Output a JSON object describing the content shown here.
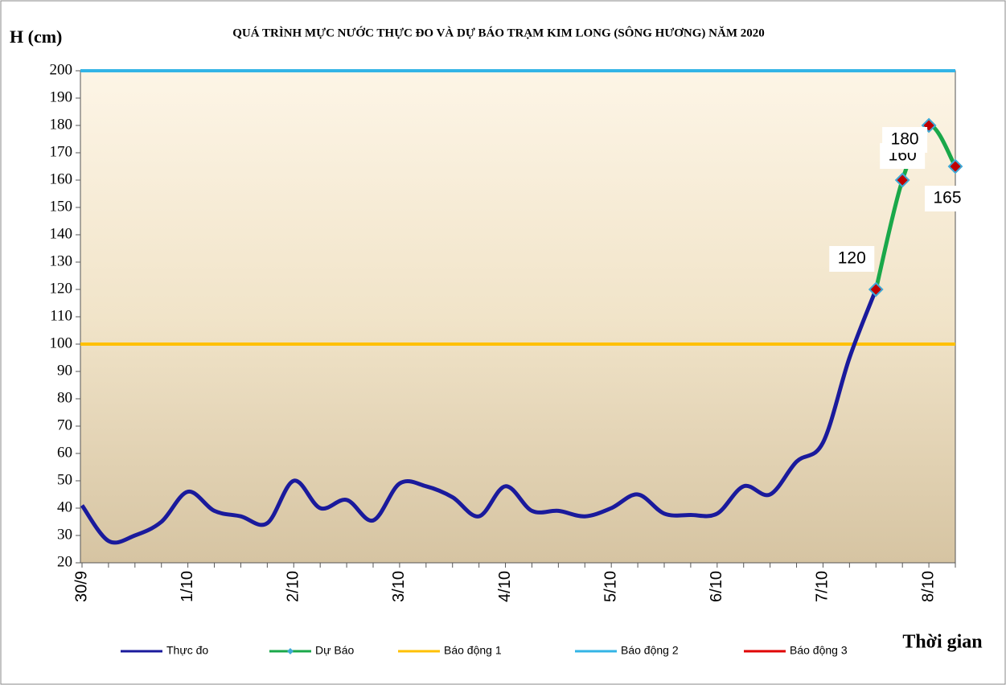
{
  "chart_data": {
    "type": "line",
    "title": "QUÁ TRÌNH MỰC NƯỚC THỰC ĐO VÀ DỰ BÁO TRẠM KIM LONG (SÔNG HƯƠNG) NĂM 2020",
    "y_label": "H (cm)",
    "x_label": "Thời gian",
    "categories": [
      "30/9",
      null,
      null,
      null,
      "1/10",
      null,
      null,
      null,
      "2/10",
      null,
      null,
      null,
      "3/10",
      null,
      null,
      null,
      "4/10",
      null,
      null,
      null,
      "5/10",
      null,
      null,
      null,
      "6/10",
      null,
      null,
      null,
      "7/10",
      null,
      null,
      null,
      "8/10",
      null
    ],
    "series": [
      {
        "name": "Thực đo",
        "color": "#1a1a9c",
        "values": [
          41,
          28,
          30,
          35,
          46,
          39,
          37,
          34.5,
          50,
          40,
          43,
          35.5,
          49,
          48,
          44,
          37,
          48,
          39,
          39,
          37,
          40,
          45,
          38,
          37.5,
          38,
          48,
          45,
          57,
          64,
          95,
          120,
          null,
          null,
          null
        ]
      },
      {
        "name": "Dự Báo",
        "color": "#1aa84a",
        "marker_color": "#c00000",
        "marker_edge": "#3fa9d6",
        "show_labels": true,
        "values": [
          null,
          null,
          null,
          null,
          null,
          null,
          null,
          null,
          null,
          null,
          null,
          null,
          null,
          null,
          null,
          null,
          null,
          null,
          null,
          null,
          null,
          null,
          null,
          null,
          null,
          null,
          null,
          null,
          null,
          null,
          120,
          160,
          180,
          165
        ]
      }
    ],
    "reference_lines": [
      {
        "name": "Báo động 1",
        "color": "#ffc000",
        "value": 100
      },
      {
        "name": "Báo động 2",
        "color": "#33b4e6",
        "value": 200
      },
      {
        "name": "Báo động 3",
        "color": "#e00000"
      }
    ],
    "ylim": [
      20,
      200
    ],
    "yticks": [
      20,
      30,
      40,
      50,
      60,
      70,
      80,
      90,
      100,
      110,
      120,
      130,
      140,
      150,
      160,
      170,
      180,
      190,
      200
    ],
    "legend": "bottom"
  }
}
